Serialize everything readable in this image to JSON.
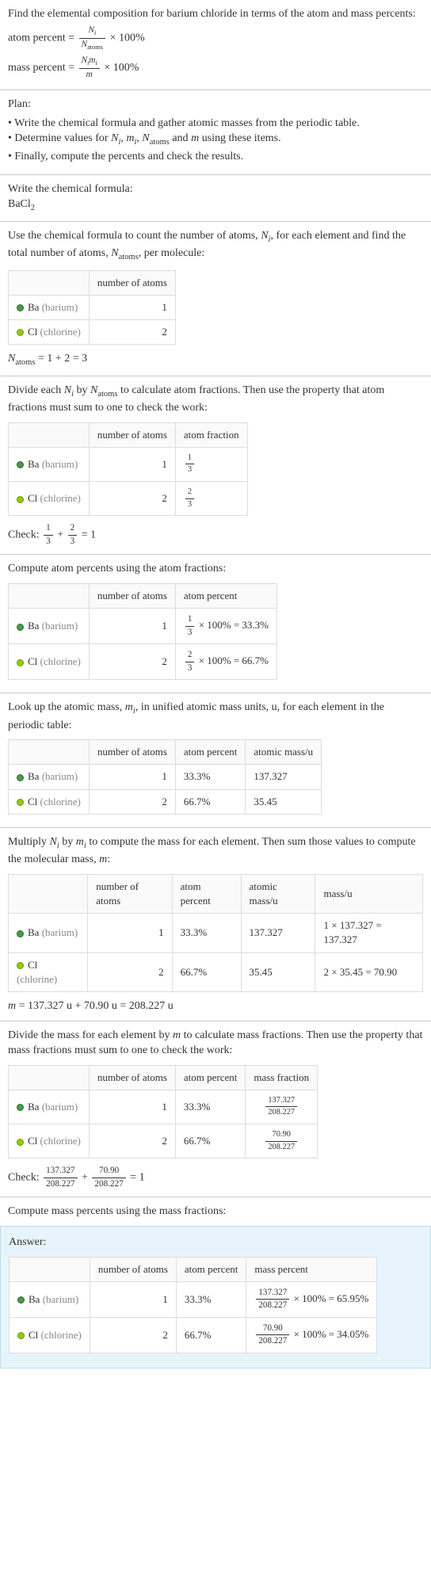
{
  "intro": {
    "line1": "Find the elemental composition for barium chloride in terms of the atom and mass percents:",
    "atom_percent_lhs": "atom percent = ",
    "mass_percent_lhs": "mass percent = ",
    "eq_rhs": " × 100%",
    "frac_Ni": "N",
    "frac_Ni_sub": "i",
    "frac_Natoms": "N",
    "frac_Natoms_sub": "atoms",
    "frac_Nimi_top1": "N",
    "frac_Nimi_sub1": "i",
    "frac_Nimi_top2": "m",
    "frac_Nimi_sub2": "i",
    "frac_m": "m"
  },
  "plan": {
    "heading": "Plan:",
    "items": [
      "Write the chemical formula and gather atomic masses from the periodic table.",
      "Determine values for Nᵢ, mᵢ, N_atoms and m using these items.",
      "Finally, compute the percents and check the results."
    ]
  },
  "formula_section": {
    "heading": "Write the chemical formula:",
    "formula_main": "BaCl",
    "formula_sub": "2"
  },
  "count_section": {
    "text1": "Use the chemical formula to count the number of atoms, ",
    "text2": ", for each element and find the total number of atoms, ",
    "text3": ", per molecule:",
    "Ni": "N",
    "Ni_sub": "i",
    "Natoms": "N",
    "Natoms_sub": "atoms",
    "headers": [
      "",
      "number of atoms"
    ],
    "rows": [
      {
        "el_sym": "Ba",
        "el_name": "(barium)",
        "dot": "ba",
        "n": "1"
      },
      {
        "el_sym": "Cl",
        "el_name": "(chlorine)",
        "dot": "cl",
        "n": "2"
      }
    ],
    "sum_lhs": "N",
    "sum_sub": "atoms",
    "sum_eq": " = 1 + 2 = 3"
  },
  "atomfrac_section": {
    "text1": "Divide each ",
    "text2": " by ",
    "text3": " to calculate atom fractions. Then use the property that atom fractions must sum to one to check the work:",
    "headers": [
      "",
      "number of atoms",
      "atom fraction"
    ],
    "rows": [
      {
        "el_sym": "Ba",
        "el_name": "(barium)",
        "dot": "ba",
        "n": "1",
        "fn": "1",
        "fd": "3"
      },
      {
        "el_sym": "Cl",
        "el_name": "(chlorine)",
        "dot": "cl",
        "n": "2",
        "fn": "2",
        "fd": "3"
      }
    ],
    "check_label": "Check: ",
    "check_f1n": "1",
    "check_f1d": "3",
    "check_plus": " + ",
    "check_f2n": "2",
    "check_f2d": "3",
    "check_eq": " = 1"
  },
  "atompercent_section": {
    "heading": "Compute atom percents using the atom fractions:",
    "headers": [
      "",
      "number of atoms",
      "atom percent"
    ],
    "rows": [
      {
        "el_sym": "Ba",
        "el_name": "(barium)",
        "dot": "ba",
        "n": "1",
        "fn": "1",
        "fd": "3",
        "res": " × 100% = 33.3%"
      },
      {
        "el_sym": "Cl",
        "el_name": "(chlorine)",
        "dot": "cl",
        "n": "2",
        "fn": "2",
        "fd": "3",
        "res": " × 100% = 66.7%"
      }
    ]
  },
  "atomicmass_section": {
    "text": "Look up the atomic mass, mᵢ, in unified atomic mass units, u, for each element in the periodic table:",
    "headers": [
      "",
      "number of atoms",
      "atom percent",
      "atomic mass/u"
    ],
    "rows": [
      {
        "el_sym": "Ba",
        "el_name": "(barium)",
        "dot": "ba",
        "n": "1",
        "pct": "33.3%",
        "mass": "137.327"
      },
      {
        "el_sym": "Cl",
        "el_name": "(chlorine)",
        "dot": "cl",
        "n": "2",
        "pct": "66.7%",
        "mass": "35.45"
      }
    ]
  },
  "molmass_section": {
    "text": "Multiply Nᵢ by mᵢ to compute the mass for each element. Then sum those values to compute the molecular mass, m:",
    "headers": [
      "",
      "number of atoms",
      "atom percent",
      "atomic mass/u",
      "mass/u"
    ],
    "rows": [
      {
        "el_sym": "Ba",
        "el_name": "(barium)",
        "dot": "ba",
        "n": "1",
        "pct": "33.3%",
        "mass": "137.327",
        "calc": "1 × 137.327 = 137.327"
      },
      {
        "el_sym": "Cl",
        "el_name": "(chlorine)",
        "dot": "cl",
        "n": "2",
        "pct": "66.7%",
        "mass": "35.45",
        "calc": "2 × 35.45 = 70.90"
      }
    ],
    "sum": "m = 137.327 u + 70.90 u = 208.227 u"
  },
  "massfrac_section": {
    "text": "Divide the mass for each element by m to calculate mass fractions. Then use the property that mass fractions must sum to one to check the work:",
    "headers": [
      "",
      "number of atoms",
      "atom percent",
      "mass fraction"
    ],
    "rows": [
      {
        "el_sym": "Ba",
        "el_name": "(barium)",
        "dot": "ba",
        "n": "1",
        "pct": "33.3%",
        "fn": "137.327",
        "fd": "208.227"
      },
      {
        "el_sym": "Cl",
        "el_name": "(chlorine)",
        "dot": "cl",
        "n": "2",
        "pct": "66.7%",
        "fn": "70.90",
        "fd": "208.227"
      }
    ],
    "check_label": "Check: ",
    "check_f1n": "137.327",
    "check_f1d": "208.227",
    "check_plus": " + ",
    "check_f2n": "70.90",
    "check_f2d": "208.227",
    "check_eq": " = 1"
  },
  "answer_section": {
    "heading": "Compute mass percents using the mass fractions:",
    "answer_label": "Answer:",
    "headers": [
      "",
      "number of atoms",
      "atom percent",
      "mass percent"
    ],
    "rows": [
      {
        "el_sym": "Ba",
        "el_name": "(barium)",
        "dot": "ba",
        "n": "1",
        "pct": "33.3%",
        "fn": "137.327",
        "fd": "208.227",
        "res": " × 100% = 65.95%"
      },
      {
        "el_sym": "Cl",
        "el_name": "(chlorine)",
        "dot": "cl",
        "n": "2",
        "pct": "66.7%",
        "fn": "70.90",
        "fd": "208.227",
        "res": " × 100% = 34.05%"
      }
    ]
  }
}
